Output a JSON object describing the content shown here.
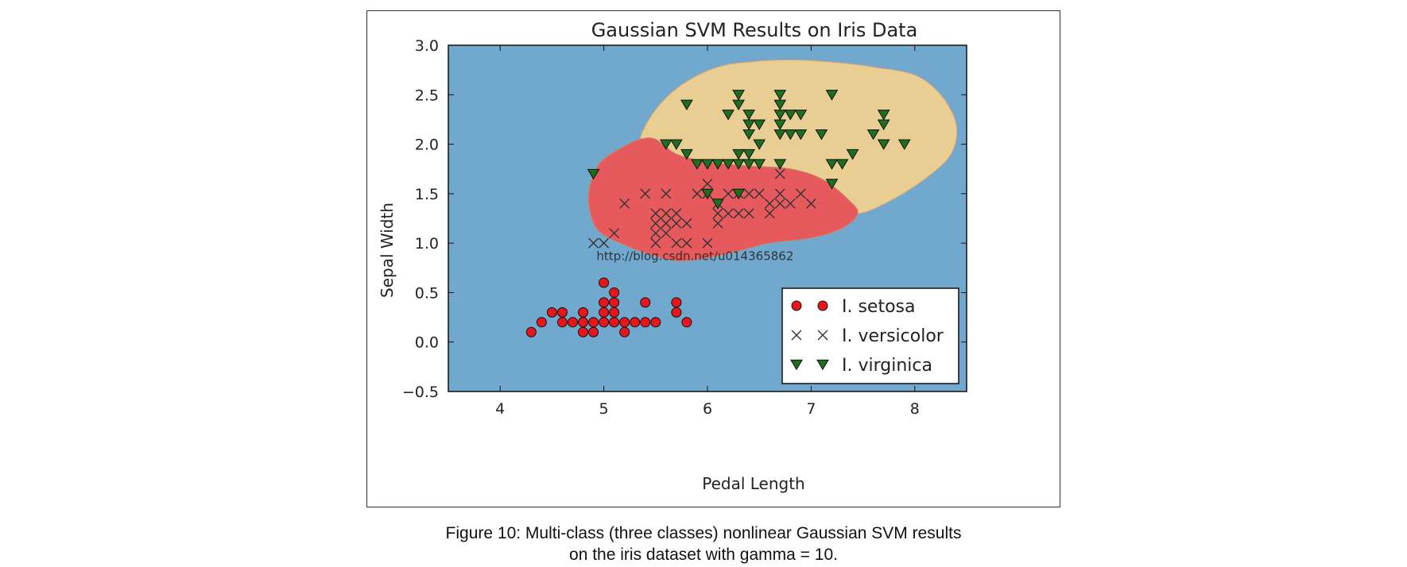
{
  "chart_data": {
    "type": "scatter",
    "title": "Gaussian SVM Results on Iris Data",
    "xlabel": "Pedal Length",
    "ylabel": "Sepal Width",
    "xlim": [
      3.5,
      8.5
    ],
    "ylim": [
      -0.5,
      3.0
    ],
    "xticks": [
      4,
      5,
      6,
      7,
      8
    ],
    "yticks": [
      -0.5,
      0.0,
      0.5,
      1.0,
      1.5,
      2.0,
      2.5,
      3.0
    ],
    "ytick_labels": [
      "−0.5",
      "0.0",
      "0.5",
      "1.0",
      "1.5",
      "2.0",
      "2.5",
      "3.0"
    ],
    "legend_position": "bottom-right",
    "grid": false,
    "colors": {
      "background_region": "#71a8ce",
      "setosa_region": "#71a8ce",
      "versicolor_region": "#e65a5e",
      "virginica_region": "#e8ce92",
      "setosa_marker": "#e8151b",
      "versicolor_marker": "#333333",
      "virginica_marker": "#1e6e1e"
    },
    "series": [
      {
        "name": "I. setosa",
        "marker": "circle",
        "points": [
          [
            4.3,
            0.1
          ],
          [
            4.4,
            0.2
          ],
          [
            4.5,
            0.3
          ],
          [
            4.6,
            0.2
          ],
          [
            4.6,
            0.3
          ],
          [
            4.7,
            0.2
          ],
          [
            4.8,
            0.1
          ],
          [
            4.8,
            0.2
          ],
          [
            4.8,
            0.3
          ],
          [
            4.9,
            0.1
          ],
          [
            4.9,
            0.2
          ],
          [
            5.0,
            0.2
          ],
          [
            5.0,
            0.3
          ],
          [
            5.0,
            0.4
          ],
          [
            5.0,
            0.6
          ],
          [
            5.1,
            0.2
          ],
          [
            5.1,
            0.3
          ],
          [
            5.1,
            0.4
          ],
          [
            5.1,
            0.5
          ],
          [
            5.2,
            0.1
          ],
          [
            5.2,
            0.2
          ],
          [
            5.3,
            0.2
          ],
          [
            5.4,
            0.2
          ],
          [
            5.4,
            0.4
          ],
          [
            5.5,
            0.2
          ],
          [
            5.7,
            0.3
          ],
          [
            5.7,
            0.4
          ],
          [
            5.8,
            0.2
          ]
        ]
      },
      {
        "name": "I. versicolor",
        "marker": "x",
        "points": [
          [
            4.9,
            1.0
          ],
          [
            5.0,
            1.0
          ],
          [
            5.1,
            1.1
          ],
          [
            5.2,
            1.4
          ],
          [
            5.4,
            1.5
          ],
          [
            5.5,
            1.0
          ],
          [
            5.5,
            1.1
          ],
          [
            5.5,
            1.2
          ],
          [
            5.5,
            1.3
          ],
          [
            5.6,
            1.1
          ],
          [
            5.6,
            1.2
          ],
          [
            5.6,
            1.3
          ],
          [
            5.6,
            1.5
          ],
          [
            5.7,
            1.0
          ],
          [
            5.7,
            1.2
          ],
          [
            5.7,
            1.3
          ],
          [
            5.8,
            1.0
          ],
          [
            5.8,
            1.2
          ],
          [
            5.9,
            1.5
          ],
          [
            6.0,
            1.0
          ],
          [
            6.0,
            1.5
          ],
          [
            6.0,
            1.6
          ],
          [
            6.1,
            1.2
          ],
          [
            6.1,
            1.3
          ],
          [
            6.1,
            1.4
          ],
          [
            6.2,
            1.3
          ],
          [
            6.2,
            1.5
          ],
          [
            6.3,
            1.3
          ],
          [
            6.3,
            1.5
          ],
          [
            6.4,
            1.3
          ],
          [
            6.4,
            1.5
          ],
          [
            6.5,
            1.5
          ],
          [
            6.6,
            1.3
          ],
          [
            6.6,
            1.4
          ],
          [
            6.7,
            1.4
          ],
          [
            6.7,
            1.5
          ],
          [
            6.7,
            1.7
          ],
          [
            6.8,
            1.4
          ],
          [
            6.9,
            1.5
          ],
          [
            7.0,
            1.4
          ]
        ]
      },
      {
        "name": "I. virginica",
        "marker": "triangle-down",
        "points": [
          [
            4.9,
            1.7
          ],
          [
            5.6,
            2.0
          ],
          [
            5.7,
            2.0
          ],
          [
            5.8,
            2.4
          ],
          [
            5.8,
            1.9
          ],
          [
            5.9,
            1.8
          ],
          [
            6.0,
            1.8
          ],
          [
            6.0,
            1.5
          ],
          [
            6.1,
            1.8
          ],
          [
            6.1,
            1.4
          ],
          [
            6.2,
            1.8
          ],
          [
            6.2,
            2.3
          ],
          [
            6.3,
            1.8
          ],
          [
            6.3,
            1.9
          ],
          [
            6.3,
            2.4
          ],
          [
            6.3,
            2.5
          ],
          [
            6.3,
            1.5
          ],
          [
            6.4,
            1.8
          ],
          [
            6.4,
            1.9
          ],
          [
            6.4,
            2.1
          ],
          [
            6.4,
            2.2
          ],
          [
            6.4,
            2.3
          ],
          [
            6.5,
            1.8
          ],
          [
            6.5,
            2.0
          ],
          [
            6.5,
            2.2
          ],
          [
            6.7,
            1.8
          ],
          [
            6.7,
            2.1
          ],
          [
            6.7,
            2.2
          ],
          [
            6.7,
            2.3
          ],
          [
            6.7,
            2.4
          ],
          [
            6.7,
            2.5
          ],
          [
            6.8,
            2.1
          ],
          [
            6.8,
            2.3
          ],
          [
            6.9,
            2.1
          ],
          [
            6.9,
            2.3
          ],
          [
            7.1,
            2.1
          ],
          [
            7.2,
            1.6
          ],
          [
            7.2,
            1.8
          ],
          [
            7.2,
            2.5
          ],
          [
            7.3,
            1.8
          ],
          [
            7.4,
            1.9
          ],
          [
            7.6,
            2.1
          ],
          [
            7.7,
            2.0
          ],
          [
            7.7,
            2.2
          ],
          [
            7.7,
            2.3
          ],
          [
            7.9,
            2.0
          ]
        ]
      }
    ],
    "regions": {
      "versicolor_boundary": [
        [
          4.85,
          1.45
        ],
        [
          4.9,
          1.7
        ],
        [
          5.0,
          1.85
        ],
        [
          5.2,
          1.98
        ],
        [
          5.35,
          2.05
        ],
        [
          5.5,
          2.05
        ],
        [
          5.7,
          1.9
        ],
        [
          6.0,
          1.82
        ],
        [
          6.4,
          1.78
        ],
        [
          6.8,
          1.75
        ],
        [
          7.1,
          1.65
        ],
        [
          7.35,
          1.45
        ],
        [
          7.45,
          1.3
        ],
        [
          7.3,
          1.15
        ],
        [
          7.0,
          1.05
        ],
        [
          6.6,
          1.0
        ],
        [
          6.3,
          0.92
        ],
        [
          6.0,
          0.85
        ],
        [
          5.7,
          0.82
        ],
        [
          5.4,
          0.9
        ],
        [
          5.2,
          0.98
        ],
        [
          5.0,
          1.08
        ],
        [
          4.9,
          1.2
        ]
      ],
      "virginica_boundary": [
        [
          5.35,
          2.05
        ],
        [
          5.5,
          2.35
        ],
        [
          5.75,
          2.6
        ],
        [
          6.1,
          2.78
        ],
        [
          6.5,
          2.84
        ],
        [
          6.9,
          2.85
        ],
        [
          7.3,
          2.82
        ],
        [
          7.6,
          2.78
        ],
        [
          8.0,
          2.7
        ],
        [
          8.25,
          2.5
        ],
        [
          8.4,
          2.2
        ],
        [
          8.35,
          1.9
        ],
        [
          8.1,
          1.65
        ],
        [
          7.75,
          1.42
        ],
        [
          7.45,
          1.3
        ],
        [
          7.35,
          1.45
        ],
        [
          7.1,
          1.65
        ],
        [
          6.8,
          1.75
        ],
        [
          6.4,
          1.78
        ],
        [
          6.0,
          1.82
        ],
        [
          5.7,
          1.9
        ],
        [
          5.5,
          2.05
        ]
      ]
    }
  },
  "watermark": "http://blog.csdn.net/u014365862",
  "caption": {
    "line1": "Figure 10: Multi-class (three classes) nonlinear Gaussian SVM results",
    "line2": "on the iris dataset with gamma = 10."
  }
}
